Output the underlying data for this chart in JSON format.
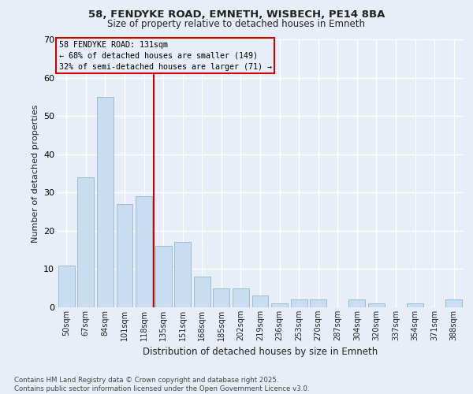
{
  "title_line1": "58, FENDYKE ROAD, EMNETH, WISBECH, PE14 8BA",
  "title_line2": "Size of property relative to detached houses in Emneth",
  "xlabel": "Distribution of detached houses by size in Emneth",
  "ylabel": "Number of detached properties",
  "categories": [
    "50sqm",
    "67sqm",
    "84sqm",
    "101sqm",
    "118sqm",
    "135sqm",
    "151sqm",
    "168sqm",
    "185sqm",
    "202sqm",
    "219sqm",
    "236sqm",
    "253sqm",
    "270sqm",
    "287sqm",
    "304sqm",
    "320sqm",
    "337sqm",
    "354sqm",
    "371sqm",
    "388sqm"
  ],
  "values": [
    11,
    34,
    55,
    27,
    29,
    16,
    17,
    8,
    5,
    5,
    3,
    1,
    2,
    2,
    0,
    2,
    1,
    0,
    1,
    0,
    2
  ],
  "bar_color": "#c8ddf0",
  "bar_edge_color": "#9bbcd6",
  "marker_label_line1": "58 FENDYKE ROAD: 131sqm",
  "marker_label_line2": "← 68% of detached houses are smaller (149)",
  "marker_label_line3": "32% of semi-detached houses are larger (71) →",
  "marker_line_color": "#cc0000",
  "annotation_box_color": "#cc0000",
  "background_color": "#e8eef8",
  "grid_color": "#ffffff",
  "ylim": [
    0,
    70
  ],
  "yticks": [
    0,
    10,
    20,
    30,
    40,
    50,
    60,
    70
  ],
  "footnote_line1": "Contains HM Land Registry data © Crown copyright and database right 2025.",
  "footnote_line2": "Contains public sector information licensed under the Open Government Licence v3.0."
}
